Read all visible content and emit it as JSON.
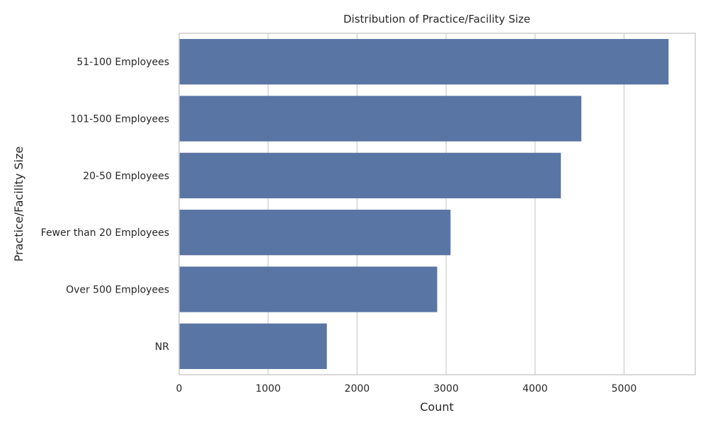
{
  "chart_data": {
    "type": "bar",
    "orientation": "horizontal",
    "title": "Distribution of Practice/Facility Size",
    "xlabel": "Count",
    "ylabel": "Practice/Facility Size",
    "categories": [
      "51-100 Employees",
      "101-500 Employees",
      "20-50 Employees",
      "Fewer than 20 Employees",
      "Over 500 Employees",
      "NR"
    ],
    "values": [
      5500,
      4520,
      4290,
      3050,
      2900,
      1660
    ],
    "xlim": [
      0,
      5800
    ],
    "xticks": [
      0,
      1000,
      2000,
      3000,
      4000,
      5000
    ],
    "grid": true,
    "bar_color": "#5975a4"
  }
}
